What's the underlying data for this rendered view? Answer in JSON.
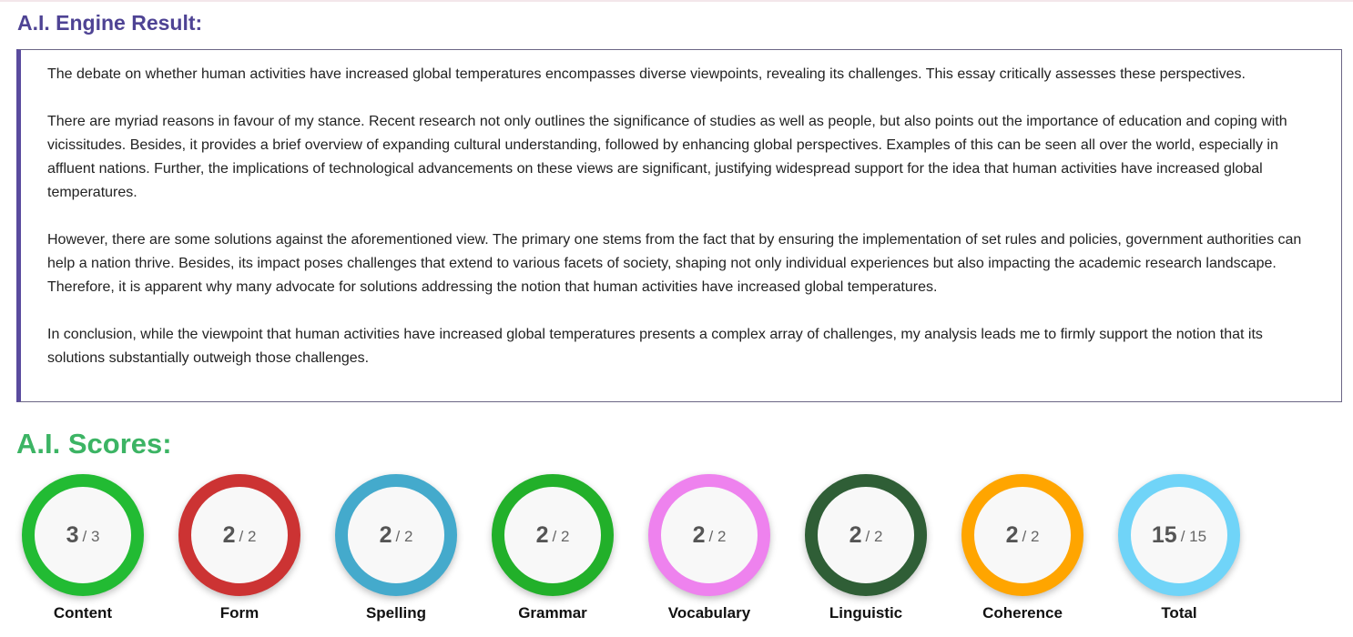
{
  "result": {
    "title": "A.I. Engine Result:",
    "paragraphs": [
      "The debate on whether human activities have increased global temperatures encompasses diverse viewpoints, revealing its challenges. This essay critically assesses these perspectives.",
      "There are myriad reasons in favour of my stance. Recent research not only outlines the significance of studies as well as people, but also points out the importance of education and coping with vicissitudes. Besides, it provides a brief overview of expanding cultural understanding, followed by enhancing global perspectives. Examples of this can be seen all over the world, especially in affluent nations. Further, the implications of technological advancements on these views are significant, justifying widespread support for the idea that human activities have increased global temperatures.",
      "However, there are some solutions against the aforementioned view. The primary one stems from the fact that by ensuring the implementation of set rules and policies, government authorities can help a nation thrive. Besides, its impact poses challenges that extend to various facets of society, shaping not only individual experiences but also impacting the academic research landscape. Therefore, it is apparent why many advocate for solutions addressing the notion that human activities have increased global temperatures.",
      "In conclusion, while the viewpoint that human activities have increased global temperatures presents a complex array of challenges, my analysis leads me to firmly support the notion that its solutions substantially outweigh those challenges."
    ]
  },
  "scores": {
    "title": "A.I. Scores:",
    "items": [
      {
        "label": "Content",
        "score": 3,
        "max_text": "/ 3",
        "color": "#22bb33"
      },
      {
        "label": "Form",
        "score": 2,
        "max_text": "/ 2",
        "color": "#cc3333"
      },
      {
        "label": "Spelling",
        "score": 2,
        "max_text": "/ 2",
        "color": "#44aacc"
      },
      {
        "label": "Grammar",
        "score": 2,
        "max_text": "/ 2",
        "color": "#22b02a"
      },
      {
        "label": "Vocabulary",
        "score": 2,
        "max_text": "/ 2",
        "color": "#ee82ee"
      },
      {
        "label": "Linguistic",
        "score": 2,
        "max_text": "/ 2",
        "color": "#2f5e36"
      },
      {
        "label": "Coherence",
        "score": 2,
        "max_text": "/ 2",
        "color": "#ffa500"
      },
      {
        "label": "Total",
        "score": 15,
        "max_text": "/ 15",
        "color": "#70d4f8"
      }
    ]
  }
}
